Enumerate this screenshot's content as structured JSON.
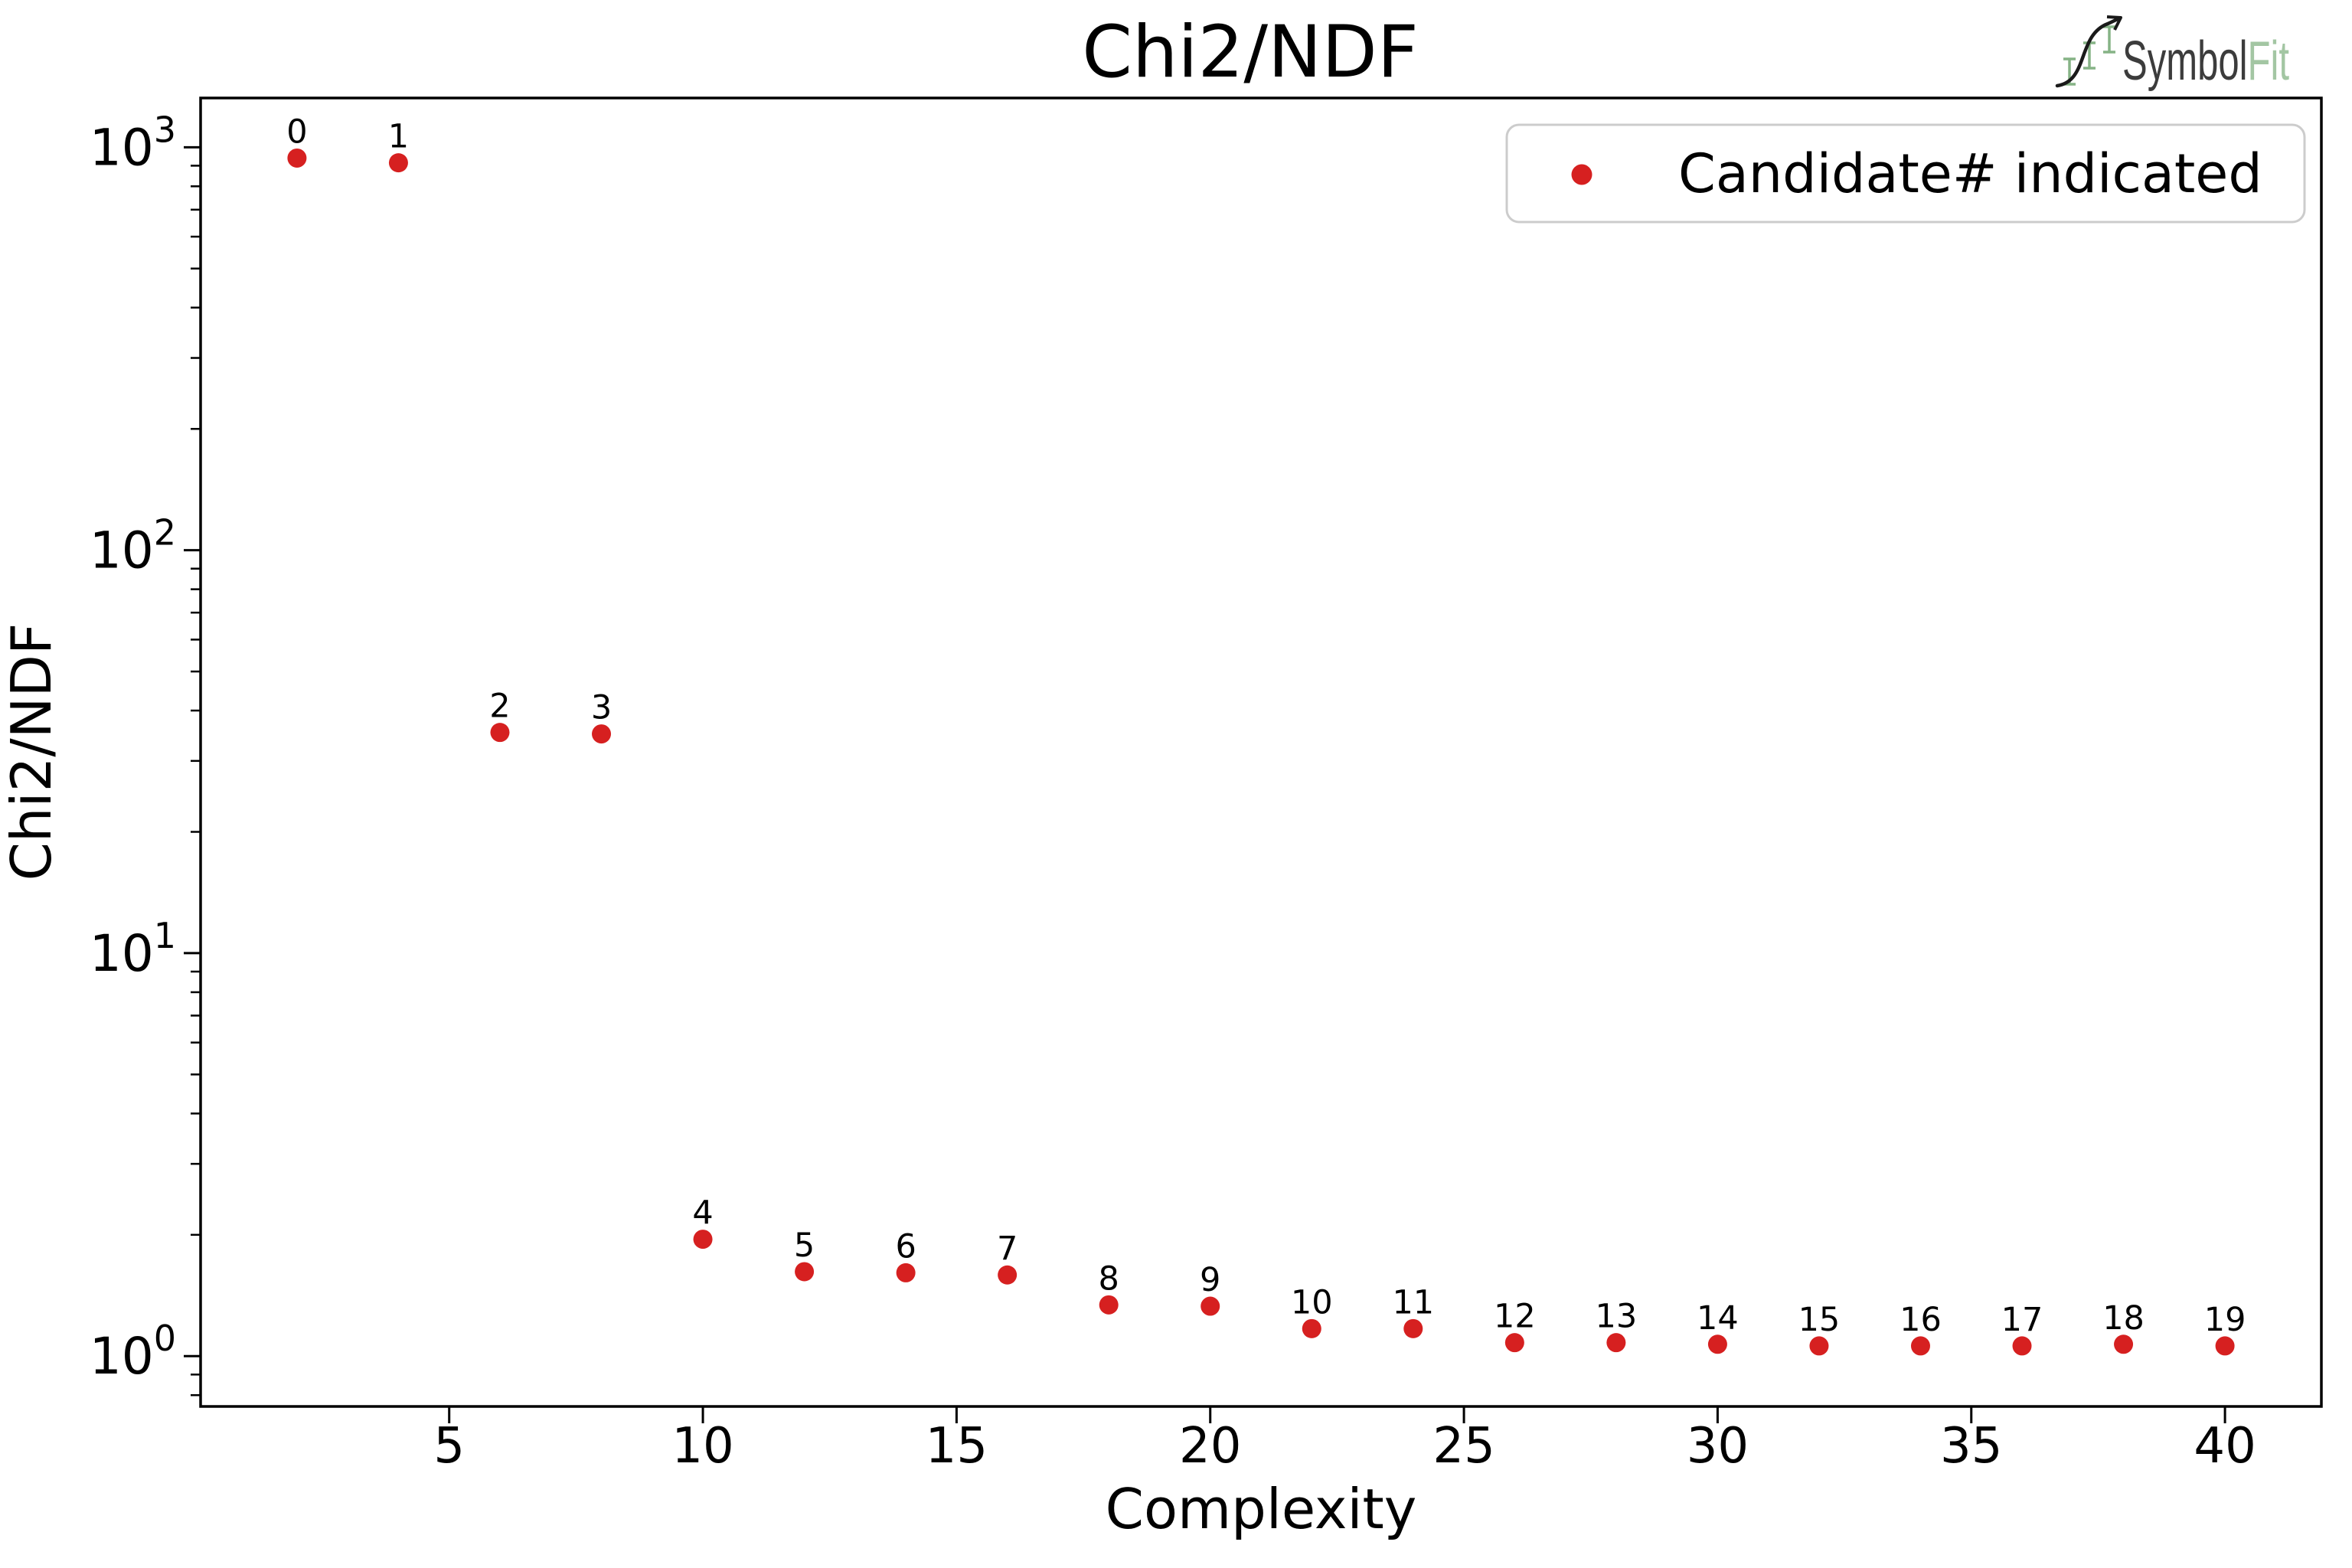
{
  "header": {
    "title": "Chi2/NDF",
    "logo": {
      "primary": "Symbol",
      "secondary": "Fit",
      "primary_color": "#3c3c3c",
      "secondary_color": "#a3c6a3",
      "icon_green": "#86b386"
    }
  },
  "legend": {
    "label": "Candidate# indicated",
    "border_color": "#cccccc"
  },
  "chart_data": {
    "type": "scatter",
    "title": "Chi2/NDF",
    "xlabel": "Complexity",
    "ylabel": "Chi2/NDF",
    "x_scale": "linear",
    "y_scale": "log",
    "xlim": [
      0.1,
      41.9
    ],
    "ylim": [
      0.75,
      1325
    ],
    "x_ticks": [
      5,
      10,
      15,
      20,
      25,
      30,
      35,
      40
    ],
    "y_tick_exponents": [
      0,
      1,
      2,
      3
    ],
    "grid": false,
    "legend_position": "upper right",
    "legend_entries": [
      "Candidate# indicated"
    ],
    "marker_color": "#d62020",
    "points": [
      {
        "label": "0",
        "x": 2,
        "y": 940
      },
      {
        "label": "1",
        "x": 4,
        "y": 915
      },
      {
        "label": "2",
        "x": 6,
        "y": 35.3
      },
      {
        "label": "3",
        "x": 8,
        "y": 35.0
      },
      {
        "label": "4",
        "x": 10,
        "y": 1.95
      },
      {
        "label": "5",
        "x": 12,
        "y": 1.62
      },
      {
        "label": "6",
        "x": 14,
        "y": 1.61
      },
      {
        "label": "7",
        "x": 16,
        "y": 1.59
      },
      {
        "label": "8",
        "x": 18,
        "y": 1.34
      },
      {
        "label": "9",
        "x": 20,
        "y": 1.33
      },
      {
        "label": "10",
        "x": 22,
        "y": 1.17
      },
      {
        "label": "11",
        "x": 24,
        "y": 1.17
      },
      {
        "label": "12",
        "x": 26,
        "y": 1.08
      },
      {
        "label": "13",
        "x": 28,
        "y": 1.08
      },
      {
        "label": "14",
        "x": 30,
        "y": 1.07
      },
      {
        "label": "15",
        "x": 32,
        "y": 1.06
      },
      {
        "label": "16",
        "x": 34,
        "y": 1.06
      },
      {
        "label": "17",
        "x": 36,
        "y": 1.06
      },
      {
        "label": "18",
        "x": 38,
        "y": 1.07
      },
      {
        "label": "19",
        "x": 40,
        "y": 1.06
      }
    ]
  }
}
